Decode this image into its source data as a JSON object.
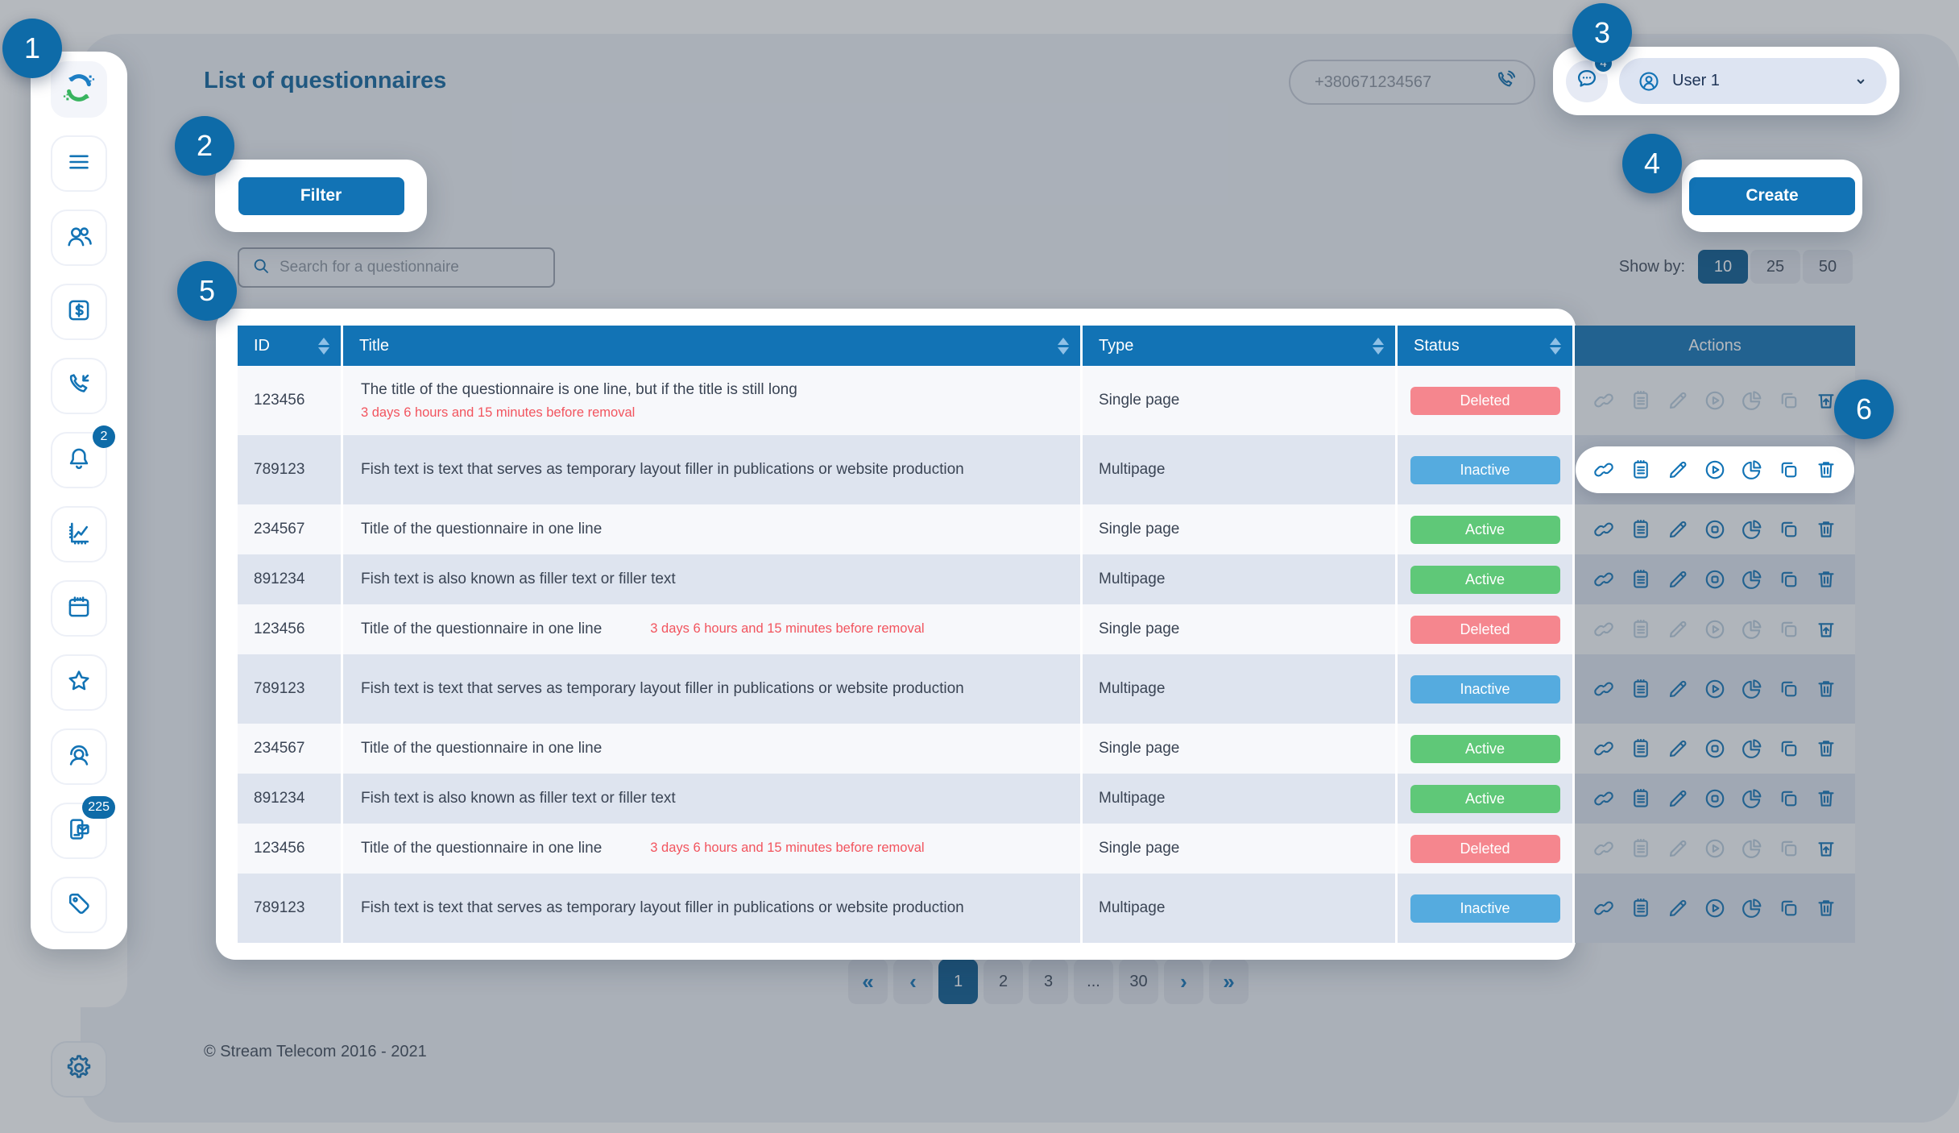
{
  "tour": {
    "steps": [
      "1",
      "2",
      "3",
      "4",
      "5",
      "6"
    ]
  },
  "sidebar": {
    "logo_name": "stream-telecom-logo",
    "items": [
      {
        "name": "menu",
        "icon": "menu-icon"
      },
      {
        "name": "contacts",
        "icon": "users-icon"
      },
      {
        "name": "billing",
        "icon": "dollar-icon"
      },
      {
        "name": "calls",
        "icon": "phone-callback-icon"
      },
      {
        "name": "notifications",
        "icon": "bell-icon",
        "badge": "2"
      },
      {
        "name": "analytics",
        "icon": "chart-icon"
      },
      {
        "name": "calendar",
        "icon": "calendar-icon"
      },
      {
        "name": "favorites",
        "icon": "star-icon"
      },
      {
        "name": "support",
        "icon": "headset-icon"
      },
      {
        "name": "sms",
        "icon": "sms-icon",
        "badge": "225"
      },
      {
        "name": "tags",
        "icon": "tag-icon"
      }
    ],
    "settings_icon": "gear-icon"
  },
  "header": {
    "title": "List of questionnaires",
    "phone_number": "+380671234567",
    "chat_badge": "4",
    "user_name": "User 1"
  },
  "toolbar": {
    "filter_label": "Filter",
    "create_label": "Create",
    "search_placeholder": "Search for a questionnaire",
    "show_by_label": "Show by:",
    "page_sizes": [
      "10",
      "25",
      "50"
    ],
    "active_page_size": "10"
  },
  "table": {
    "columns": [
      "ID",
      "Title",
      "Type",
      "Status",
      "Actions"
    ],
    "sortable_columns": [
      "ID",
      "Title",
      "Type",
      "Status"
    ],
    "actions": {
      "Active": [
        "link",
        "clipboard",
        "edit",
        "stop",
        "pie-chart",
        "copy",
        "delete"
      ],
      "Inactive": [
        "link",
        "clipboard",
        "edit",
        "play",
        "pie-chart",
        "copy",
        "delete"
      ],
      "Deleted": [
        "link",
        "clipboard",
        "edit",
        "play",
        "pie-chart",
        "copy",
        "restore"
      ]
    },
    "rows": [
      {
        "id": "123456",
        "title": "The title of the questionnaire is one line, but if the title is still long",
        "note": "3 days 6 hours and 15 minutes before removal",
        "note_position": "below",
        "type": "Single page",
        "status": "Deleted"
      },
      {
        "id": "789123",
        "title": "Fish text is text that serves as temporary layout filler in publications or website production",
        "type": "Multipage",
        "status": "Inactive",
        "actions_highlighted": true
      },
      {
        "id": "234567",
        "title": "Title of the questionnaire in one line",
        "type": "Single page",
        "status": "Active"
      },
      {
        "id": "891234",
        "title": "Fish text is also known as filler text or filler text",
        "type": "Multipage",
        "status": "Active"
      },
      {
        "id": "123456",
        "title": "Title of the questionnaire in one line",
        "note": "3 days 6 hours and 15 minutes before removal",
        "note_position": "inline",
        "type": "Single page",
        "status": "Deleted"
      },
      {
        "id": "789123",
        "title": "Fish text is text that serves as temporary layout filler in publications or website production",
        "type": "Multipage",
        "status": "Inactive"
      },
      {
        "id": "234567",
        "title": "Title of the questionnaire in one line",
        "type": "Single page",
        "status": "Active"
      },
      {
        "id": "891234",
        "title": "Fish text is also known as filler text or filler text",
        "type": "Multipage",
        "status": "Active"
      },
      {
        "id": "123456",
        "title": "Title of the questionnaire in one line",
        "note": "3 days 6 hours and 15 minutes before removal",
        "note_position": "inline",
        "type": "Single page",
        "status": "Deleted"
      },
      {
        "id": "789123",
        "title": "Fish text is text that serves as temporary layout filler in publications or website production",
        "type": "Multipage",
        "status": "Inactive"
      }
    ]
  },
  "pagination": {
    "items": [
      "«",
      "‹",
      "1",
      "2",
      "3",
      "...",
      "30",
      "›",
      "»"
    ],
    "active_page": "1"
  },
  "footer": {
    "copyright": "© Stream Telecom 2016 - 2021"
  },
  "colors": {
    "accent": "#1273B5",
    "accent_dark": "#0B5A8E",
    "badge_blue": "#0E6BA8",
    "status_active": "#5FC878",
    "status_inactive": "#55ABDF",
    "status_deleted": "#F5868E",
    "note_red": "#F2545E"
  }
}
